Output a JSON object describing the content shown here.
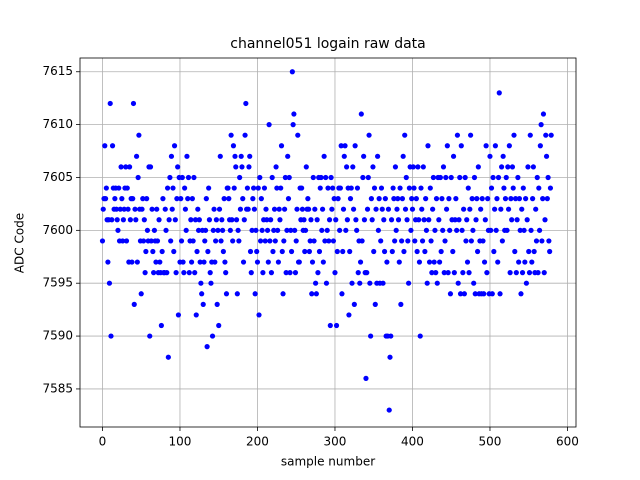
{
  "chart_data": {
    "type": "scatter",
    "title": "channel051 logain raw data",
    "x_label": "sample number",
    "y_label": "ADC Code",
    "xlim": [
      -29,
      611
    ],
    "ylim": [
      7581.4,
      7616.3
    ],
    "xticks": [
      0,
      100,
      200,
      300,
      400,
      500,
      600
    ],
    "yticks": [
      7585,
      7590,
      7595,
      7600,
      7605,
      7610,
      7615
    ],
    "grid": true,
    "series": [
      {
        "color": "#0000ff",
        "x": [
          0,
          1,
          2,
          3,
          4,
          5,
          6,
          7,
          8,
          9,
          10,
          11,
          12,
          13,
          14,
          15,
          16,
          17,
          18,
          19,
          20,
          21,
          22,
          23,
          24,
          25,
          26,
          27,
          28,
          29,
          30,
          31,
          32,
          33,
          34,
          35,
          36,
          37,
          38,
          39,
          40,
          41,
          42,
          43,
          44,
          45,
          46,
          47,
          48,
          49,
          50,
          51,
          52,
          53,
          54,
          55,
          56,
          57,
          58,
          59,
          60,
          61,
          62,
          63,
          64,
          65,
          66,
          67,
          68,
          69,
          70,
          71,
          72,
          73,
          74,
          75,
          76,
          77,
          78,
          79,
          80,
          81,
          82,
          83,
          84,
          85,
          86,
          87,
          88,
          89,
          90,
          91,
          92,
          93,
          94,
          95,
          96,
          97,
          98,
          99,
          100,
          101,
          102,
          103,
          104,
          105,
          106,
          107,
          108,
          109,
          110,
          111,
          112,
          113,
          114,
          115,
          116,
          117,
          118,
          119,
          120,
          121,
          122,
          123,
          124,
          125,
          126,
          127,
          128,
          129,
          130,
          131,
          132,
          133,
          134,
          135,
          136,
          137,
          138,
          139,
          140,
          141,
          142,
          143,
          144,
          145,
          146,
          147,
          148,
          149,
          150,
          151,
          152,
          153,
          154,
          155,
          156,
          157,
          158,
          159,
          160,
          161,
          162,
          163,
          164,
          165,
          166,
          167,
          168,
          169,
          170,
          171,
          172,
          173,
          174,
          175,
          176,
          177,
          178,
          179,
          180,
          181,
          182,
          183,
          184,
          185,
          186,
          187,
          188,
          189,
          190,
          191,
          192,
          193,
          194,
          195,
          196,
          197,
          198,
          199,
          200,
          201,
          202,
          203,
          204,
          205,
          206,
          207,
          208,
          209,
          210,
          211,
          212,
          213,
          214,
          215,
          216,
          217,
          218,
          219,
          220,
          221,
          222,
          223,
          224,
          225,
          226,
          227,
          228,
          229,
          230,
          231,
          232,
          233,
          234,
          235,
          236,
          237,
          238,
          239,
          240,
          241,
          242,
          243,
          244,
          245,
          246,
          247,
          248,
          249,
          250,
          251,
          252,
          253,
          254,
          255,
          256,
          257,
          258,
          259,
          260,
          261,
          262,
          263,
          264,
          265,
          266,
          267,
          268,
          269,
          270,
          271,
          272,
          273,
          274,
          275,
          276,
          277,
          278,
          279,
          280,
          281,
          282,
          283,
          284,
          285,
          286,
          287,
          288,
          289,
          290,
          291,
          292,
          293,
          294,
          295,
          296,
          297,
          298,
          299,
          300,
          301,
          302,
          303,
          304,
          305,
          306,
          307,
          308,
          309,
          310,
          311,
          312,
          313,
          314,
          315,
          316,
          317,
          318,
          319,
          320,
          321,
          322,
          323,
          324,
          325,
          326,
          327,
          328,
          329,
          330,
          331,
          332,
          333,
          334,
          335,
          336,
          337,
          338,
          339,
          340,
          341,
          342,
          343,
          344,
          345,
          346,
          347,
          348,
          349,
          350,
          351,
          352,
          353,
          354,
          355,
          356,
          357,
          358,
          359,
          360,
          361,
          362,
          363,
          364,
          365,
          366,
          367,
          368,
          369,
          370,
          371,
          372,
          373,
          374,
          375,
          376,
          377,
          378,
          379,
          380,
          381,
          382,
          383,
          384,
          385,
          386,
          387,
          388,
          389,
          390,
          391,
          392,
          393,
          394,
          395,
          396,
          397,
          398,
          399,
          400,
          401,
          402,
          403,
          404,
          405,
          406,
          407,
          408,
          409,
          410,
          411,
          412,
          413,
          414,
          415,
          416,
          417,
          418,
          419,
          420,
          421,
          422,
          423,
          424,
          425,
          426,
          427,
          428,
          429,
          430,
          431,
          432,
          433,
          434,
          435,
          436,
          437,
          438,
          439,
          440,
          441,
          442,
          443,
          444,
          445,
          446,
          447,
          448,
          449,
          450,
          451,
          452,
          453,
          454,
          455,
          456,
          457,
          458,
          459,
          460,
          461,
          462,
          463,
          464,
          465,
          466,
          467,
          468,
          469,
          470,
          471,
          472,
          473,
          474,
          475,
          476,
          477,
          478,
          479,
          480,
          481,
          482,
          483,
          484,
          485,
          486,
          487,
          488,
          489,
          490,
          491,
          492,
          493,
          494,
          495,
          496,
          497,
          498,
          499,
          500,
          501,
          502,
          503,
          504,
          505,
          506,
          507,
          508,
          509,
          510,
          511,
          512,
          513,
          514,
          515,
          516,
          517,
          518,
          519,
          520,
          521,
          522,
          523,
          524,
          525,
          526,
          527,
          528,
          529,
          530,
          531,
          532,
          533,
          534,
          535,
          536,
          537,
          538,
          539,
          540,
          541,
          542,
          543,
          544,
          545,
          546,
          547,
          548,
          549,
          550,
          551,
          552,
          553,
          554,
          555,
          556,
          557,
          558,
          559,
          560,
          561,
          562,
          563,
          564,
          565,
          566,
          567,
          568,
          569,
          570,
          571,
          572,
          573,
          574,
          575,
          576,
          577,
          578,
          579
        ],
        "values": [
          7599,
          7602,
          7603,
          7608,
          7603,
          7604,
          7601,
          7597,
          7601,
          7595,
          7612,
          7590,
          7601,
          7608,
          7604,
          7602,
          7603,
          7604,
          7602,
          7601,
          7600,
          7604,
          7599,
          7602,
          7606,
          7603,
          7599,
          7601,
          7602,
          7604,
          7606,
          7599,
          7604,
          7602,
          7597,
          7606,
          7601,
          7603,
          7597,
          7603,
          7612,
          7593,
          7602,
          7601,
          7607,
          7597,
          7605,
          7609,
          7602,
          7599,
          7594,
          7602,
          7603,
          7599,
          7601,
          7596,
          7598,
          7603,
          7600,
          7599,
          7606,
          7590,
          7606,
          7599,
          7602,
          7598,
          7596,
          7600,
          7599,
          7597,
          7602,
          7599,
          7596,
          7601,
          7597,
          7596,
          7591,
          7598,
          7603,
          7596,
          7596,
          7602,
          7600,
          7596,
          7604,
          7588,
          7601,
          7605,
          7599,
          7607,
          7602,
          7604,
          7598,
          7608,
          7601,
          7596,
          7603,
          7606,
          7592,
          7605,
          7597,
          7603,
          7599,
          7605,
          7597,
          7596,
          7604,
          7602,
          7600,
          7607,
          7603,
          7605,
          7596,
          7599,
          7601,
          7597,
          7603,
          7599,
          7605,
          7596,
          7601,
          7592,
          7598,
          7602,
          7600,
          7601,
          7597,
          7595,
          7594,
          7600,
          7593,
          7597,
          7599,
          7600,
          7603,
          7589,
          7598,
          7604,
          7601,
          7596,
          7595,
          7597,
          7590,
          7600,
          7602,
          7597,
          7599,
          7601,
          7593,
          7600,
          7591,
          7602,
          7607,
          7599,
          7601,
          7600,
          7598,
          7603,
          7597,
          7596,
          7594,
          7604,
          7604,
          7603,
          7601,
          7600,
          7609,
          7601,
          7599,
          7608,
          7604,
          7607,
          7606,
          7601,
          7594,
          7600,
          7599,
          7605,
          7602,
          7607,
          7606,
          7603,
          7597,
          7601,
          7609,
          7612,
          7602,
          7604,
          7602,
          7606,
          7607,
          7598,
          7596,
          7600,
          7603,
          7604,
          7602,
          7594,
          7600,
          7598,
          7597,
          7604,
          7592,
          7605,
          7599,
          7603,
          7600,
          7596,
          7601,
          7604,
          7599,
          7602,
          7601,
          7600,
          7597,
          7610,
          7599,
          7601,
          7596,
          7605,
          7598,
          7600,
          7602,
          7599,
          7606,
          7604,
          7600,
          7597,
          7602,
          7601,
          7604,
          7608,
          7598,
          7594,
          7599,
          7602,
          7605,
          7596,
          7600,
          7607,
          7603,
          7605,
          7596,
          7600,
          7598,
          7615,
          7610,
          7611,
          7600,
          7596,
          7599,
          7602,
          7609,
          7597,
          7597,
          7604,
          7601,
          7604,
          7602,
          7600,
          7601,
          7598,
          7600,
          7606,
          7602,
          7603,
          7602,
          7598,
          7599,
          7601,
          7594,
          7597,
          7605,
          7599,
          7602,
          7595,
          7594,
          7601,
          7596,
          7605,
          7598,
          7604,
          7605,
          7600,
          7602,
          7597,
          7607,
          7599,
          7605,
          7595,
          7600,
          7604,
          7599,
          7601,
          7591,
          7605,
          7602,
          7604,
          7599,
          7603,
          7596,
          7601,
          7591,
          7598,
          7603,
          7604,
          7600,
          7604,
          7608,
          7594,
          7598,
          7602,
          7607,
          7608,
          7600,
          7606,
          7601,
          7604,
          7592,
          7598,
          7603,
          7604,
          7595,
          7606,
          7602,
          7593,
          7608,
          7601,
          7600,
          7604,
          7596,
          7599,
          7595,
          7597,
          7611,
          7599,
          7605,
          7607,
          7601,
          7596,
          7586,
          7596,
          7602,
          7605,
          7609,
          7595,
          7590,
          7603,
          7601,
          7606,
          7598,
          7604,
          7593,
          7602,
          7595,
          7607,
          7600,
          7603,
          7595,
          7599,
          7604,
          7602,
          7595,
          7601,
          7598,
          7603,
          7590,
          7597,
          7590,
          7602,
          7583,
          7588,
          7590,
          7601,
          7598,
          7604,
          7603,
          7599,
          7606,
          7600,
          7602,
          7603,
          7601,
          7597,
          7604,
          7593,
          7599,
          7603,
          7607,
          7598,
          7609,
          7602,
          7605,
          7601,
          7599,
          7595,
          7604,
          7606,
          7600,
          7603,
          7602,
          7606,
          7604,
          7599,
          7601,
          7603,
          7598,
          7606,
          7601,
          7597,
          7590,
          7604,
          7602,
          7599,
          7606,
          7601,
          7598,
          7603,
          7600,
          7595,
          7608,
          7601,
          7597,
          7604,
          7599,
          7596,
          7602,
          7605,
          7597,
          7600,
          7596,
          7603,
          7595,
          7605,
          7601,
          7597,
          7605,
          7598,
          7603,
          7600,
          7606,
          7596,
          7599,
          7605,
          7602,
          7608,
          7596,
          7603,
          7600,
          7594,
          7605,
          7601,
          7598,
          7607,
          7596,
          7601,
          7603,
          7600,
          7609,
          7595,
          7601,
          7605,
          7594,
          7608,
          7600,
          7596,
          7602,
          7594,
          7605,
          7599,
          7601,
          7597,
          7604,
          7596,
          7602,
          7609,
          7599,
          7603,
          7600,
          7595,
          7605,
          7594,
          7601,
          7603,
          7598,
          7606,
          7594,
          7599,
          7602,
          7594,
          7603,
          7599,
          7594,
          7597,
          7601,
          7608,
          7596,
          7603,
          7600,
          7594,
          7607,
          7600,
          7604,
          7594,
          7605,
          7598,
          7602,
          7608,
          7600,
          7603,
          7597,
          7605,
          7613,
          7594,
          7602,
          7606,
          7599,
          7607,
          7604,
          7600,
          7603,
          7605,
          7600,
          7606,
          7602,
          7608,
          7596,
          7603,
          7601,
          7606,
          7604,
          7609,
          7598,
          7603,
          7596,
          7601,
          7605,
          7597,
          7603,
          7600,
          7594,
          7602,
          7596,
          7604,
          7600,
          7597,
          7603,
          7595,
          7601,
          7606,
          7598,
          7596,
          7609,
          7600,
          7597,
          7603,
          7606,
          7598,
          7596,
          7602,
          7599,
          7605,
          7596,
          7604,
          7600,
          7608,
          7610,
          7599,
          7603,
          7611,
          7596,
          7601,
          7609,
          7607,
          7603,
          7605,
          7599,
          7598,
          7604,
          7609
        ]
      }
    ]
  }
}
